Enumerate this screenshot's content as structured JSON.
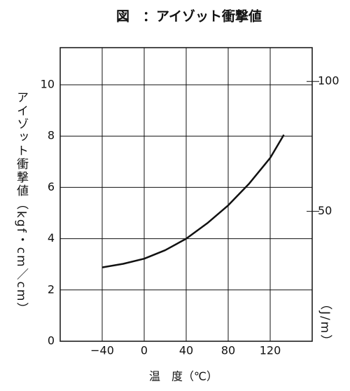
{
  "chart_data": {
    "type": "line",
    "title": "図　：アイゾット衝撃値",
    "xlabel": "温　度（℃）",
    "ylabel": "アイゾット衝撃値（kgf・cm／cm）",
    "y2label": "（J/m）",
    "x": [
      -40,
      -20,
      0,
      20,
      40,
      60,
      80,
      100,
      120,
      133
    ],
    "series": [
      {
        "color": "#111111",
        "values": [
          2.88,
          3.02,
          3.22,
          3.55,
          4.0,
          4.6,
          5.3,
          6.15,
          7.15,
          8.05
        ]
      }
    ],
    "xlim": [
      -80,
      160
    ],
    "xticks": [
      {
        "value": -40,
        "label": "−40"
      },
      0,
      40,
      80,
      120
    ],
    "ylim": [
      0,
      11.45
    ],
    "yticks": [
      0,
      2,
      4,
      6,
      8,
      10
    ],
    "y2lim": [
      0,
      113
    ],
    "y2ticks": [
      50,
      100
    ],
    "grid": true
  }
}
